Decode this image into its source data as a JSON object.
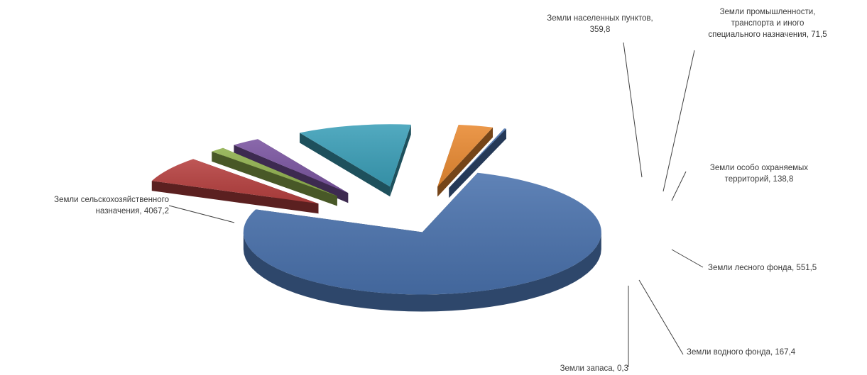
{
  "chart_data": {
    "type": "pie",
    "title": "",
    "style": "3d-exploded",
    "slices": [
      {
        "label": "Земли сельскохозяйственного назначения",
        "value": 4067.2,
        "value_text": "4067,2",
        "color": "#4a72ad"
      },
      {
        "label": "Земли населенных пунктов",
        "value": 359.8,
        "value_text": "359,8",
        "color": "#b6403f"
      },
      {
        "label": "Земли промышленности, транспорта и иного специального назначения",
        "value": 71.5,
        "value_text": "71,5",
        "color": "#8fb04d"
      },
      {
        "label": "Земли особо охраняемых территорий",
        "value": 138.8,
        "value_text": "138,8",
        "color": "#7a54a0"
      },
      {
        "label": "Земли лесного фонда",
        "value": 551.5,
        "value_text": "551,5",
        "color": "#3b9fb8"
      },
      {
        "label": "Земли водного фонда",
        "value": 167.4,
        "value_text": "167,4",
        "color": "#e98a32"
      },
      {
        "label": "Земли запаса",
        "value": 0.3,
        "value_text": "0,3",
        "color": "#4a72ad"
      }
    ],
    "labels": [
      {
        "lines": [
          "Земли сельскохозяйственного",
          "назначения, 4067,2"
        ]
      },
      {
        "lines": [
          "Земли населенных пунктов,",
          "359,8"
        ]
      },
      {
        "lines": [
          "Земли промышленности,",
          "транспорта и иного",
          "специального назначения, 71,5"
        ]
      },
      {
        "lines": [
          "Земли особо охраняемых",
          "территорий, 138,8"
        ]
      },
      {
        "lines": [
          "Земли лесного фонда, 551,5"
        ]
      },
      {
        "lines": [
          "Земли водного фонда, 167,4"
        ]
      },
      {
        "lines": [
          "Земли запаса, 0,3"
        ]
      }
    ]
  }
}
